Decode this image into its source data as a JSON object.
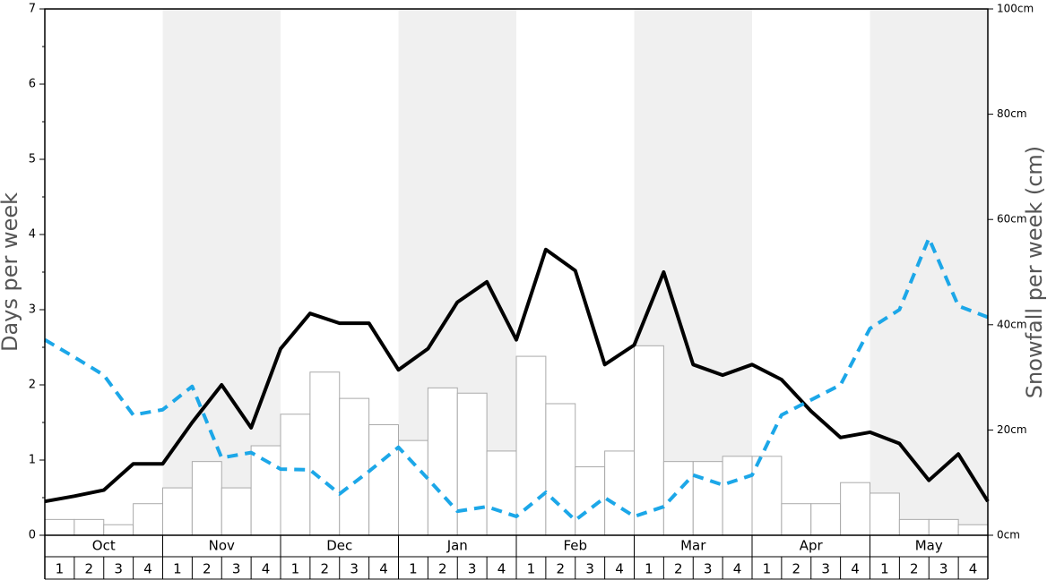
{
  "chart_data": {
    "type": "bar",
    "y_label": "Days per week",
    "y2_label": "Snowfall per week (cm)",
    "months": [
      "Oct",
      "Nov",
      "Dec",
      "Jan",
      "Feb",
      "Mar",
      "Apr",
      "May"
    ],
    "categories": [
      "1",
      "2",
      "3",
      "4",
      "1",
      "2",
      "3",
      "4",
      "1",
      "2",
      "3",
      "4",
      "1",
      "2",
      "3",
      "4",
      "1",
      "2",
      "3",
      "4",
      "1",
      "2",
      "3",
      "4",
      "1",
      "2",
      "3",
      "4",
      "1",
      "2",
      "3",
      "4"
    ],
    "band_colors": [
      "#ffffff",
      "#f0f0f0"
    ],
    "ylim": [
      0,
      7
    ],
    "yticks": [
      0,
      1,
      2,
      3,
      4,
      5,
      6,
      7
    ],
    "y2lim": [
      0,
      100
    ],
    "y2ticks": [
      {
        "value": 0,
        "label": "0cm"
      },
      {
        "value": 20,
        "label": "20cm"
      },
      {
        "value": 40,
        "label": "40cm"
      },
      {
        "value": 60,
        "label": "60cm"
      },
      {
        "value": 80,
        "label": "80cm"
      },
      {
        "value": 100,
        "label": "100cm"
      }
    ],
    "bars": {
      "axis": "y2",
      "color": "#ffffff",
      "edge": "#aaaaaa",
      "values": [
        3,
        3,
        2,
        6,
        9,
        14,
        9,
        17,
        23,
        31,
        26,
        21,
        18,
        28,
        27,
        16,
        34,
        25,
        13,
        16,
        36,
        14,
        14,
        15,
        15,
        6,
        6,
        10,
        8,
        3,
        3,
        2
      ]
    },
    "x": [
      0,
      1,
      2,
      3,
      4,
      5,
      6,
      7,
      8,
      9,
      10,
      11,
      12,
      13,
      14,
      15,
      16,
      17,
      18,
      19,
      20,
      21,
      22,
      23,
      24,
      25,
      26,
      27,
      28,
      29,
      30,
      31,
      32
    ],
    "series": [
      {
        "color": "#000000",
        "dashed": false,
        "values": [
          0.45,
          0.52,
          0.6,
          0.95,
          0.95,
          1.5,
          2.0,
          1.43,
          2.48,
          2.95,
          2.82,
          2.82,
          2.2,
          2.48,
          3.1,
          3.37,
          2.6,
          3.8,
          3.52,
          2.27,
          2.53,
          3.5,
          2.27,
          2.13,
          2.27,
          2.07,
          1.65,
          1.3,
          1.37,
          1.22,
          0.73,
          1.08,
          0.45
        ]
      },
      {
        "color": "#1ca7e8",
        "dashed": true,
        "values": [
          2.6,
          2.37,
          2.13,
          1.6,
          1.67,
          1.98,
          1.03,
          1.1,
          0.88,
          0.87,
          0.55,
          0.85,
          1.17,
          0.75,
          0.32,
          0.38,
          0.25,
          0.57,
          0.2,
          0.5,
          0.25,
          0.38,
          0.8,
          0.67,
          0.8,
          1.6,
          1.8,
          2.0,
          2.75,
          3.0,
          3.95,
          3.05,
          2.9
        ]
      }
    ]
  }
}
